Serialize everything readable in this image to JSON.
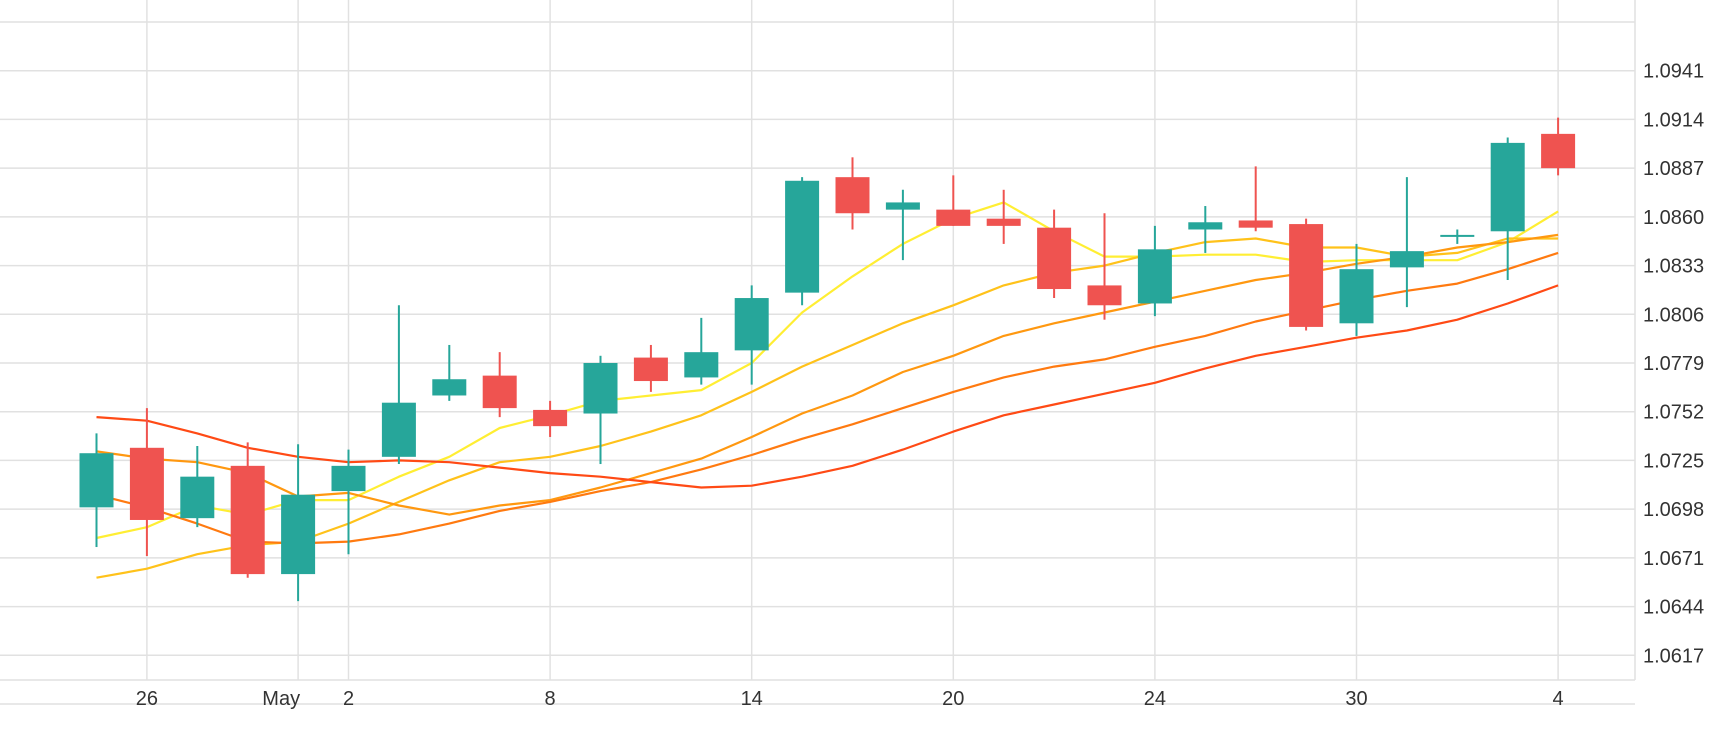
{
  "chart_data": {
    "type": "candlestick",
    "title": "",
    "xlabel": "",
    "ylabel": "",
    "grid": true,
    "y_ticks": [
      "1.0941",
      "1.0914",
      "1.0887",
      "1.0860",
      "1.0833",
      "1.0806",
      "1.0779",
      "1.0752",
      "1.0725",
      "1.0698",
      "1.0671",
      "1.0644",
      "1.0617"
    ],
    "y_range": [
      1.059,
      1.0968
    ],
    "x_ticks": [
      {
        "at": 2,
        "label": "26"
      },
      {
        "at": 5,
        "label": "May"
      },
      {
        "at": 6,
        "label": "2"
      },
      {
        "at": 10,
        "label": "8"
      },
      {
        "at": 14,
        "label": "14"
      },
      {
        "at": 18,
        "label": "20"
      },
      {
        "at": 22,
        "label": "24"
      },
      {
        "at": 26,
        "label": "30"
      },
      {
        "at": 30,
        "label": "4"
      }
    ],
    "candles": [
      {
        "i": 1,
        "open": 1.0699,
        "high": 1.074,
        "low": 1.0677,
        "close": 1.0729
      },
      {
        "i": 2,
        "open": 1.0732,
        "high": 1.0754,
        "low": 1.0672,
        "close": 1.0692
      },
      {
        "i": 3,
        "open": 1.0693,
        "high": 1.0733,
        "low": 1.0688,
        "close": 1.0716
      },
      {
        "i": 4,
        "open": 1.0722,
        "high": 1.0735,
        "low": 1.066,
        "close": 1.0662
      },
      {
        "i": 5,
        "open": 1.0662,
        "high": 1.0734,
        "low": 1.0647,
        "close": 1.0706
      },
      {
        "i": 6,
        "open": 1.0708,
        "high": 1.0731,
        "low": 1.0673,
        "close": 1.0722
      },
      {
        "i": 7,
        "open": 1.0727,
        "high": 1.0811,
        "low": 1.0723,
        "close": 1.0757
      },
      {
        "i": 8,
        "open": 1.0761,
        "high": 1.0789,
        "low": 1.0758,
        "close": 1.077
      },
      {
        "i": 9,
        "open": 1.0772,
        "high": 1.0785,
        "low": 1.0749,
        "close": 1.0754
      },
      {
        "i": 10,
        "open": 1.0753,
        "high": 1.0758,
        "low": 1.0738,
        "close": 1.0744
      },
      {
        "i": 11,
        "open": 1.0751,
        "high": 1.0783,
        "low": 1.0723,
        "close": 1.0779
      },
      {
        "i": 12,
        "open": 1.0782,
        "high": 1.0789,
        "low": 1.0763,
        "close": 1.0769
      },
      {
        "i": 13,
        "open": 1.0771,
        "high": 1.0804,
        "low": 1.0767,
        "close": 1.0785
      },
      {
        "i": 14,
        "open": 1.0786,
        "high": 1.0822,
        "low": 1.0767,
        "close": 1.0815
      },
      {
        "i": 15,
        "open": 1.0818,
        "high": 1.0882,
        "low": 1.0811,
        "close": 1.088
      },
      {
        "i": 16,
        "open": 1.0882,
        "high": 1.0893,
        "low": 1.0853,
        "close": 1.0862
      },
      {
        "i": 17,
        "open": 1.0864,
        "high": 1.0875,
        "low": 1.0836,
        "close": 1.0868
      },
      {
        "i": 18,
        "open": 1.0864,
        "high": 1.0883,
        "low": 1.0855,
        "close": 1.0855
      },
      {
        "i": 19,
        "open": 1.0859,
        "high": 1.0875,
        "low": 1.0845,
        "close": 1.0855
      },
      {
        "i": 20,
        "open": 1.0854,
        "high": 1.0864,
        "low": 1.0815,
        "close": 1.082
      },
      {
        "i": 21,
        "open": 1.0822,
        "high": 1.0862,
        "low": 1.0803,
        "close": 1.0811
      },
      {
        "i": 22,
        "open": 1.0812,
        "high": 1.0855,
        "low": 1.0805,
        "close": 1.0842
      },
      {
        "i": 23,
        "open": 1.0853,
        "high": 1.0866,
        "low": 1.084,
        "close": 1.0857
      },
      {
        "i": 24,
        "open": 1.0858,
        "high": 1.0888,
        "low": 1.0852,
        "close": 1.0854
      },
      {
        "i": 25,
        "open": 1.0856,
        "high": 1.0859,
        "low": 1.0797,
        "close": 1.0799
      },
      {
        "i": 26,
        "open": 1.0801,
        "high": 1.0845,
        "low": 1.0794,
        "close": 1.0831
      },
      {
        "i": 27,
        "open": 1.0832,
        "high": 1.0882,
        "low": 1.081,
        "close": 1.0841
      },
      {
        "i": 28,
        "open": 1.0849,
        "high": 1.0853,
        "low": 1.0845,
        "close": 1.085
      },
      {
        "i": 29,
        "open": 1.0852,
        "high": 1.0904,
        "low": 1.0825,
        "close": 1.0901
      },
      {
        "i": 30,
        "open": 1.0906,
        "high": 1.0915,
        "low": 1.0883,
        "close": 1.0887
      }
    ],
    "moving_averages": [
      {
        "color": "#ffee33",
        "points": [
          [
            1,
            1.0682
          ],
          [
            2,
            1.0688
          ],
          [
            3,
            1.07
          ],
          [
            4,
            1.0695
          ],
          [
            5,
            1.0703
          ],
          [
            6,
            1.0703
          ],
          [
            7,
            1.0716
          ],
          [
            8,
            1.0727
          ],
          [
            9,
            1.0743
          ],
          [
            10,
            1.075
          ],
          [
            11,
            1.0758
          ],
          [
            12,
            1.0761
          ],
          [
            13,
            1.0764
          ],
          [
            14,
            1.0779
          ],
          [
            15,
            1.0807
          ],
          [
            16,
            1.0827
          ],
          [
            17,
            1.0845
          ],
          [
            18,
            1.0859
          ],
          [
            19,
            1.0868
          ],
          [
            20,
            1.0852
          ],
          [
            21,
            1.0838
          ],
          [
            22,
            1.0838
          ],
          [
            23,
            1.0839
          ],
          [
            24,
            1.0839
          ],
          [
            25,
            1.0835
          ],
          [
            26,
            1.0836
          ],
          [
            27,
            1.0836
          ],
          [
            28,
            1.0836
          ],
          [
            29,
            1.0846
          ],
          [
            30,
            1.0863
          ]
        ]
      },
      {
        "color": "#ffc21a",
        "points": [
          [
            1,
            1.066
          ],
          [
            2,
            1.0665
          ],
          [
            3,
            1.0673
          ],
          [
            4,
            1.0678
          ],
          [
            5,
            1.068
          ],
          [
            6,
            1.069
          ],
          [
            7,
            1.0702
          ],
          [
            8,
            1.0714
          ],
          [
            9,
            1.0724
          ],
          [
            10,
            1.0727
          ],
          [
            11,
            1.0733
          ],
          [
            12,
            1.0741
          ],
          [
            13,
            1.075
          ],
          [
            14,
            1.0763
          ],
          [
            15,
            1.0777
          ],
          [
            16,
            1.0789
          ],
          [
            17,
            1.0801
          ],
          [
            18,
            1.0811
          ],
          [
            19,
            1.0822
          ],
          [
            20,
            1.0829
          ],
          [
            21,
            1.0833
          ],
          [
            22,
            1.084
          ],
          [
            23,
            1.0846
          ],
          [
            24,
            1.0848
          ],
          [
            25,
            1.0843
          ],
          [
            26,
            1.0843
          ],
          [
            27,
            1.0838
          ],
          [
            28,
            1.084
          ],
          [
            29,
            1.0848
          ],
          [
            30,
            1.0848
          ]
        ]
      },
      {
        "color": "#ff9810",
        "points": [
          [
            1,
            1.073
          ],
          [
            2,
            1.0726
          ],
          [
            3,
            1.0724
          ],
          [
            4,
            1.0718
          ],
          [
            5,
            1.0705
          ],
          [
            6,
            1.0707
          ],
          [
            7,
            1.07
          ],
          [
            8,
            1.0695
          ],
          [
            9,
            1.07
          ],
          [
            10,
            1.0703
          ],
          [
            11,
            1.071
          ],
          [
            12,
            1.0718
          ],
          [
            13,
            1.0726
          ],
          [
            14,
            1.0738
          ],
          [
            15,
            1.0751
          ],
          [
            16,
            1.0761
          ],
          [
            17,
            1.0774
          ],
          [
            18,
            1.0783
          ],
          [
            19,
            1.0794
          ],
          [
            20,
            1.0801
          ],
          [
            21,
            1.0807
          ],
          [
            22,
            1.0813
          ],
          [
            23,
            1.0819
          ],
          [
            24,
            1.0825
          ],
          [
            25,
            1.0829
          ],
          [
            26,
            1.0834
          ],
          [
            27,
            1.0838
          ],
          [
            28,
            1.0843
          ],
          [
            29,
            1.0846
          ],
          [
            30,
            1.085
          ]
        ]
      },
      {
        "color": "#ff7a10",
        "points": [
          [
            1,
            1.0706
          ],
          [
            2,
            1.0699
          ],
          [
            3,
            1.069
          ],
          [
            4,
            1.068
          ],
          [
            5,
            1.0679
          ],
          [
            6,
            1.068
          ],
          [
            7,
            1.0684
          ],
          [
            8,
            1.069
          ],
          [
            9,
            1.0697
          ],
          [
            10,
            1.0702
          ],
          [
            11,
            1.0708
          ],
          [
            12,
            1.0713
          ],
          [
            13,
            1.072
          ],
          [
            14,
            1.0728
          ],
          [
            15,
            1.0737
          ],
          [
            16,
            1.0745
          ],
          [
            17,
            1.0754
          ],
          [
            18,
            1.0763
          ],
          [
            19,
            1.0771
          ],
          [
            20,
            1.0777
          ],
          [
            21,
            1.0781
          ],
          [
            22,
            1.0788
          ],
          [
            23,
            1.0794
          ],
          [
            24,
            1.0802
          ],
          [
            25,
            1.0808
          ],
          [
            26,
            1.0814
          ],
          [
            27,
            1.0819
          ],
          [
            28,
            1.0823
          ],
          [
            29,
            1.0831
          ],
          [
            30,
            1.084
          ]
        ]
      },
      {
        "color": "#ff4a15",
        "points": [
          [
            1,
            1.0749
          ],
          [
            2,
            1.0747
          ],
          [
            3,
            1.074
          ],
          [
            4,
            1.0732
          ],
          [
            5,
            1.0727
          ],
          [
            6,
            1.0724
          ],
          [
            7,
            1.0725
          ],
          [
            8,
            1.0724
          ],
          [
            9,
            1.0721
          ],
          [
            10,
            1.0718
          ],
          [
            11,
            1.0716
          ],
          [
            12,
            1.0713
          ],
          [
            13,
            1.071
          ],
          [
            14,
            1.0711
          ],
          [
            15,
            1.0716
          ],
          [
            16,
            1.0722
          ],
          [
            17,
            1.0731
          ],
          [
            18,
            1.0741
          ],
          [
            19,
            1.075
          ],
          [
            20,
            1.0756
          ],
          [
            21,
            1.0762
          ],
          [
            22,
            1.0768
          ],
          [
            23,
            1.0776
          ],
          [
            24,
            1.0783
          ],
          [
            25,
            1.0788
          ],
          [
            26,
            1.0793
          ],
          [
            27,
            1.0797
          ],
          [
            28,
            1.0803
          ],
          [
            29,
            1.0812
          ],
          [
            30,
            1.0822
          ]
        ]
      }
    ],
    "colors": {
      "up": "#26a69a",
      "down": "#ef5350",
      "grid": "#e1e1e1",
      "axis_text": "#333333"
    }
  }
}
